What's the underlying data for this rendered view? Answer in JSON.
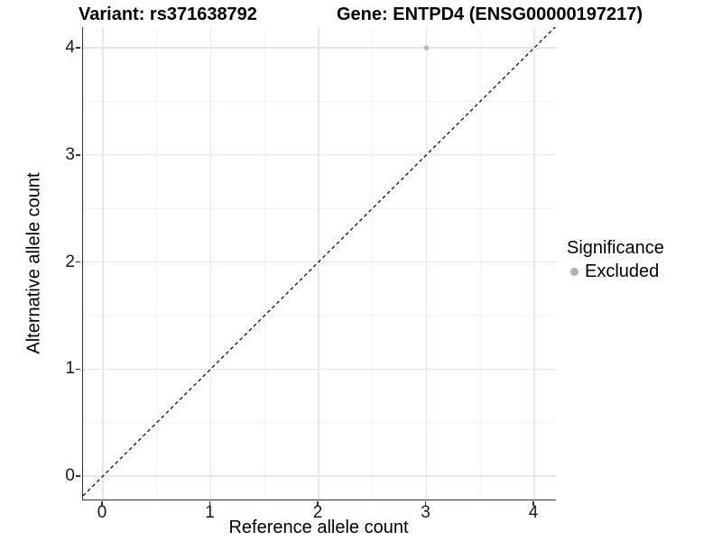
{
  "figure": {
    "titles": {
      "left": "Variant: rs371638792",
      "right": "Gene: ENTPD4 (ENSG00000197217)"
    }
  },
  "chart_data": {
    "type": "scatter",
    "xlabel": "Reference allele count",
    "ylabel": "Alternative allele count",
    "xlim": [
      -0.18,
      4.2
    ],
    "ylim": [
      -0.22,
      4.19
    ],
    "x_ticks": [
      0,
      1,
      2,
      3,
      4
    ],
    "y_ticks": [
      0,
      1,
      2,
      3,
      4
    ],
    "minor_grid_step": 0.5,
    "grid": "on",
    "points": [
      {
        "x": 3,
        "y": 4,
        "series": "Excluded"
      }
    ],
    "reference_line": {
      "equation": "y = x",
      "style": "dashed",
      "color": "#000000"
    },
    "legend": {
      "title": "Significance",
      "position": "right",
      "items": [
        {
          "label": "Excluded",
          "color": "#b0b0b0"
        }
      ]
    },
    "colors": {
      "point": "#b9b9b9",
      "grid_major": "#e8e8e8",
      "grid_minor": "#f3f3f3",
      "axis_line": "#333333",
      "text": "#000000"
    }
  }
}
